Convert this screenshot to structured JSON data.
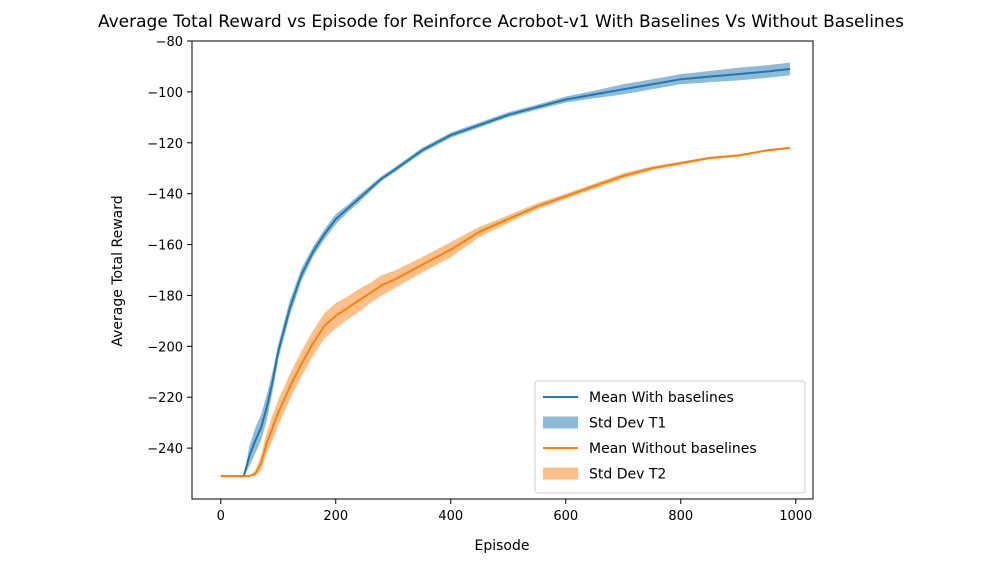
{
  "chart_data": {
    "type": "line",
    "title": "Average Total Reward vs Episode for Reinforce Acrobot-v1 With Baselines Vs Without Baselines",
    "xlabel": "Episode",
    "ylabel": "Average Total Reward",
    "xlim": [
      -50,
      1030
    ],
    "ylim": [
      -260,
      -80
    ],
    "xticks": [
      0,
      200,
      400,
      600,
      800,
      1000
    ],
    "yticks": [
      -80,
      -100,
      -120,
      -140,
      -160,
      -180,
      -200,
      -220,
      -240
    ],
    "grid": false,
    "legend_position": "lower-right",
    "x": [
      0,
      20,
      40,
      50,
      60,
      70,
      80,
      90,
      100,
      120,
      140,
      160,
      180,
      200,
      220,
      240,
      260,
      280,
      300,
      350,
      400,
      450,
      500,
      550,
      600,
      650,
      700,
      750,
      800,
      850,
      900,
      950,
      990
    ],
    "series": [
      {
        "name": "Mean With baselines",
        "color": "#1f77b4",
        "values": [
          -251,
          -251,
          -251,
          -243,
          -237,
          -232,
          -224,
          -214,
          -202,
          -185,
          -172,
          -163,
          -156,
          -150,
          -146,
          -142,
          -138,
          -134,
          -131,
          -123,
          -117,
          -113,
          -109,
          -106,
          -103,
          -101,
          -99,
          -97,
          -95,
          -94,
          -93,
          -92,
          -91
        ],
        "std": [
          0,
          0,
          0,
          4,
          5,
          5,
          5,
          4,
          3,
          3,
          2.5,
          2,
          2,
          2,
          1.5,
          1.5,
          1.2,
          1,
          1,
          1,
          1,
          1,
          1,
          1,
          1.2,
          1.5,
          2,
          2,
          2,
          2.2,
          2.5,
          2.5,
          2.5
        ]
      },
      {
        "name": "Mean Without baselines",
        "color": "#ff7f0e",
        "values": [
          -251,
          -251,
          -251,
          -251,
          -250,
          -246,
          -238,
          -232,
          -226,
          -216,
          -207,
          -199,
          -192,
          -188,
          -185,
          -182,
          -179,
          -176,
          -174,
          -168,
          -162,
          -155,
          -150,
          -145,
          -141,
          -137,
          -133,
          -130,
          -128,
          -126,
          -125,
          -123,
          -122
        ],
        "std": [
          0,
          0,
          0,
          0,
          1,
          3,
          4,
          5,
          5,
          5,
          5,
          5,
          5,
          5,
          4.5,
          4.5,
          4,
          4,
          3.5,
          3,
          3,
          2,
          1.5,
          1.2,
          1,
          1,
          1,
          0.8,
          0.6,
          0.5,
          0.5,
          0.4,
          0.4
        ]
      }
    ],
    "legend": [
      {
        "label": "Mean With baselines",
        "kind": "line",
        "color": "#1f77b4"
      },
      {
        "label": " Std Dev T1",
        "kind": "patch",
        "color": "#1f77b4"
      },
      {
        "label": "Mean Without baselines",
        "kind": "line",
        "color": "#ff7f0e"
      },
      {
        "label": " Std Dev T2",
        "kind": "patch",
        "color": "#ff7f0e"
      }
    ]
  }
}
